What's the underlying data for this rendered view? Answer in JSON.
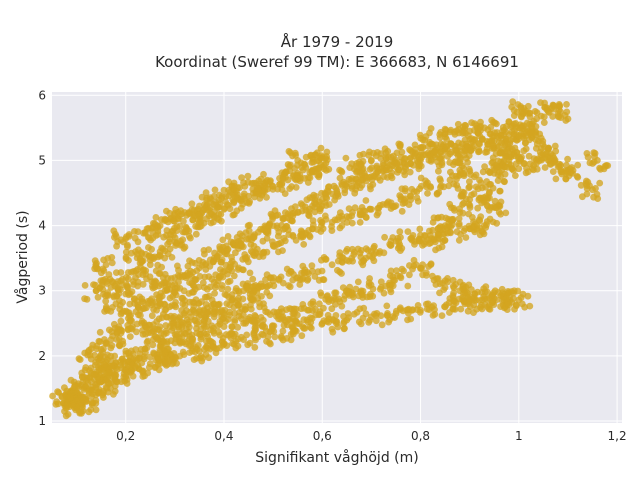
{
  "chart_data": {
    "type": "scatter",
    "title_line1": "År 1979 - 2019",
    "title_line2": "Koordinat (Sweref 99 TM): E 366683, N 6146691",
    "xlabel": "Signifikant våghöjd (m)",
    "ylabel": "Vågperiod (s)",
    "xlim": [
      0.05,
      1.21
    ],
    "ylim": [
      0.97,
      6.05
    ],
    "x_ticks": [
      0.2,
      0.4,
      0.6,
      0.8,
      1.0,
      1.2
    ],
    "x_tick_labels": [
      "0,2",
      "0,4",
      "0,6",
      "0,8",
      "1",
      "1,2"
    ],
    "y_ticks": [
      1,
      2,
      3,
      4,
      5,
      6
    ],
    "y_tick_labels": [
      "1",
      "2",
      "3",
      "4",
      "5",
      "6"
    ],
    "grid": true,
    "legend": "none",
    "marker_color": "#D4A520",
    "background_color": "#E9E9F0",
    "points": [
      [
        0.07,
        1.38
      ],
      [
        0.08,
        1.32
      ],
      [
        0.09,
        1.28
      ],
      [
        0.1,
        1.22
      ],
      [
        0.11,
        1.25
      ],
      [
        0.12,
        1.3
      ],
      [
        0.09,
        1.45
      ],
      [
        0.11,
        1.55
      ],
      [
        0.13,
        1.48
      ],
      [
        0.15,
        1.6
      ],
      [
        0.16,
        1.52
      ],
      [
        0.12,
        1.62
      ],
      [
        0.14,
        1.75
      ],
      [
        0.18,
        1.7
      ],
      [
        0.2,
        1.78
      ],
      [
        0.22,
        1.82
      ],
      [
        0.25,
        1.88
      ],
      [
        0.28,
        1.95
      ],
      [
        0.3,
        1.98
      ],
      [
        0.33,
        2.05
      ],
      [
        0.36,
        2.1
      ],
      [
        0.4,
        2.18
      ],
      [
        0.44,
        2.25
      ],
      [
        0.48,
        2.32
      ],
      [
        0.52,
        2.38
      ],
      [
        0.56,
        2.45
      ],
      [
        0.6,
        2.5
      ],
      [
        0.65,
        2.55
      ],
      [
        0.7,
        2.6
      ],
      [
        0.75,
        2.65
      ],
      [
        0.8,
        2.7
      ],
      [
        0.85,
        2.75
      ],
      [
        0.89,
        2.8
      ],
      [
        0.92,
        2.85
      ],
      [
        0.95,
        2.88
      ],
      [
        0.97,
        2.9
      ],
      [
        1.0,
        2.86
      ],
      [
        0.13,
        1.95
      ],
      [
        0.15,
        2.1
      ],
      [
        0.17,
        2.25
      ],
      [
        0.19,
        2.4
      ],
      [
        0.21,
        2.55
      ],
      [
        0.23,
        2.7
      ],
      [
        0.25,
        2.85
      ],
      [
        0.28,
        3.0
      ],
      [
        0.3,
        3.1
      ],
      [
        0.33,
        3.25
      ],
      [
        0.35,
        3.35
      ],
      [
        0.38,
        3.5
      ],
      [
        0.4,
        3.6
      ],
      [
        0.42,
        3.7
      ],
      [
        0.45,
        3.8
      ],
      [
        0.47,
        3.9
      ],
      [
        0.5,
        4.0
      ],
      [
        0.52,
        4.1
      ],
      [
        0.55,
        4.2
      ],
      [
        0.58,
        4.3
      ],
      [
        0.6,
        4.4
      ],
      [
        0.63,
        4.5
      ],
      [
        0.65,
        4.6
      ],
      [
        0.68,
        4.7
      ],
      [
        0.7,
        4.75
      ],
      [
        0.73,
        4.85
      ],
      [
        0.75,
        4.9
      ],
      [
        0.78,
        4.95
      ],
      [
        0.8,
        5.0
      ],
      [
        0.83,
        5.05
      ],
      [
        0.86,
        5.1
      ],
      [
        0.88,
        5.15
      ],
      [
        0.9,
        5.2
      ],
      [
        0.92,
        5.25
      ],
      [
        0.95,
        5.3
      ],
      [
        0.18,
        2.8
      ],
      [
        0.2,
        2.95
      ],
      [
        0.22,
        3.2
      ],
      [
        0.25,
        3.4
      ],
      [
        0.27,
        3.6
      ],
      [
        0.3,
        3.75
      ],
      [
        0.32,
        3.9
      ],
      [
        0.35,
        4.05
      ],
      [
        0.37,
        4.15
      ],
      [
        0.4,
        4.25
      ],
      [
        0.42,
        4.35
      ],
      [
        0.45,
        4.45
      ],
      [
        0.48,
        4.55
      ],
      [
        0.5,
        4.6
      ],
      [
        0.53,
        4.7
      ],
      [
        0.55,
        4.8
      ],
      [
        0.58,
        4.85
      ],
      [
        0.6,
        4.9
      ],
      [
        0.16,
        3.4
      ],
      [
        0.2,
        3.8
      ],
      [
        0.24,
        3.9
      ],
      [
        0.27,
        4.0
      ],
      [
        0.29,
        4.1
      ],
      [
        0.32,
        4.2
      ],
      [
        0.35,
        4.3
      ],
      [
        0.38,
        4.45
      ],
      [
        0.42,
        4.55
      ],
      [
        0.46,
        4.65
      ],
      [
        0.55,
        5.0
      ],
      [
        0.6,
        5.05
      ],
      [
        0.14,
        3.0
      ],
      [
        0.17,
        3.05
      ],
      [
        0.19,
        3.15
      ],
      [
        0.22,
        3.6
      ],
      [
        0.26,
        3.15
      ],
      [
        0.31,
        2.6
      ],
      [
        0.35,
        2.7
      ],
      [
        0.38,
        2.8
      ],
      [
        0.41,
        2.9
      ],
      [
        0.44,
        3.0
      ],
      [
        0.47,
        3.05
      ],
      [
        0.5,
        3.15
      ],
      [
        0.55,
        3.2
      ],
      [
        0.58,
        3.3
      ],
      [
        0.62,
        3.4
      ],
      [
        0.66,
        3.5
      ],
      [
        0.7,
        3.6
      ],
      [
        0.74,
        3.7
      ],
      [
        0.78,
        3.8
      ],
      [
        0.82,
        3.85
      ],
      [
        0.86,
        3.9
      ],
      [
        0.9,
        3.95
      ],
      [
        0.93,
        4.0
      ],
      [
        0.9,
        4.4
      ],
      [
        0.92,
        4.7
      ],
      [
        0.95,
        4.8
      ],
      [
        0.97,
        5.0
      ],
      [
        0.98,
        5.2
      ],
      [
        0.99,
        5.4
      ],
      [
        1.0,
        5.5
      ],
      [
        1.02,
        5.45
      ],
      [
        1.04,
        5.3
      ],
      [
        1.05,
        5.1
      ],
      [
        1.06,
        5.0
      ],
      [
        1.08,
        4.9
      ],
      [
        1.1,
        4.85
      ],
      [
        1.01,
        5.8
      ],
      [
        1.03,
        5.6
      ],
      [
        1.06,
        5.75
      ],
      [
        1.08,
        5.72
      ],
      [
        1.15,
        4.55
      ],
      [
        1.16,
        5.0
      ],
      [
        0.97,
        4.9
      ],
      [
        0.94,
        4.5
      ],
      [
        0.96,
        4.3
      ],
      [
        0.88,
        4.2
      ],
      [
        0.85,
        4.0
      ],
      [
        0.83,
        3.75
      ],
      [
        0.8,
        3.35
      ],
      [
        0.76,
        3.2
      ],
      [
        0.72,
        3.05
      ],
      [
        0.68,
        2.95
      ],
      [
        0.65,
        3.0
      ],
      [
        0.62,
        2.85
      ],
      [
        0.58,
        2.7
      ],
      [
        0.54,
        2.65
      ],
      [
        0.85,
        3.05
      ],
      [
        0.88,
        3.0
      ],
      [
        0.91,
        2.95
      ],
      [
        0.97,
        2.85
      ],
      [
        0.44,
        2.5
      ],
      [
        0.48,
        2.55
      ],
      [
        0.52,
        2.6
      ],
      [
        0.4,
        2.45
      ],
      [
        0.36,
        2.35
      ],
      [
        0.33,
        2.3
      ],
      [
        0.3,
        2.2
      ],
      [
        0.27,
        2.15
      ],
      [
        0.24,
        2.05
      ],
      [
        0.21,
        1.98
      ],
      [
        0.18,
        1.9
      ],
      [
        0.16,
        1.85
      ],
      [
        0.46,
        3.55
      ],
      [
        0.5,
        3.7
      ],
      [
        0.54,
        3.85
      ],
      [
        0.58,
        3.95
      ],
      [
        0.62,
        4.05
      ],
      [
        0.66,
        4.15
      ],
      [
        0.7,
        4.25
      ],
      [
        0.74,
        4.35
      ],
      [
        0.78,
        4.45
      ],
      [
        0.82,
        4.6
      ],
      [
        0.86,
        4.7
      ],
      [
        0.88,
        4.85
      ],
      [
        0.36,
        3.05
      ],
      [
        0.39,
        3.2
      ],
      [
        0.43,
        3.35
      ],
      [
        0.28,
        2.7
      ],
      [
        0.32,
        2.85
      ],
      [
        0.24,
        2.45
      ],
      [
        0.26,
        2.3
      ],
      [
        0.29,
        2.45
      ],
      [
        0.34,
        2.55
      ],
      [
        0.38,
        2.6
      ],
      [
        0.42,
        2.75
      ],
      [
        0.46,
        2.85
      ],
      [
        0.66,
        4.95
      ],
      [
        0.7,
        5.0
      ],
      [
        0.74,
        5.05
      ],
      [
        0.78,
        5.15
      ],
      [
        0.82,
        5.25
      ],
      [
        0.84,
        5.35
      ],
      [
        0.87,
        5.4
      ],
      [
        0.9,
        5.45
      ],
      [
        0.93,
        5.5
      ],
      [
        0.96,
        5.35
      ],
      [
        0.99,
        5.1
      ],
      [
        1.01,
        4.95
      ]
    ]
  }
}
